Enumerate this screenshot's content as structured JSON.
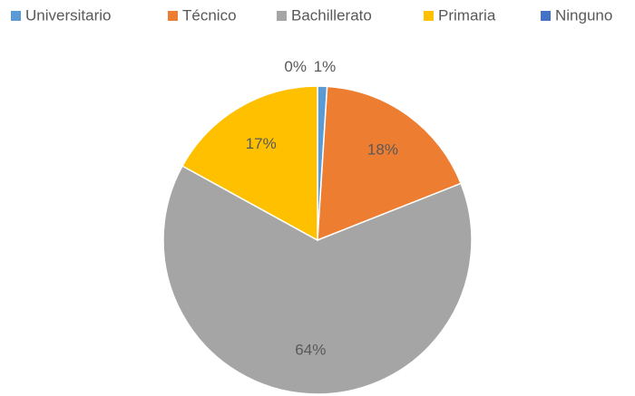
{
  "chart_data": {
    "type": "pie",
    "categories": [
      "Universitario",
      "Técnico",
      "Bachillerato",
      "Primaria",
      "Ninguno"
    ],
    "values": [
      1,
      18,
      64,
      17,
      0
    ],
    "value_labels": [
      "1%",
      "18%",
      "64%",
      "17%",
      "0%"
    ],
    "colors": [
      "#5b9bd5",
      "#ed7d31",
      "#a5a5a5",
      "#ffc000",
      "#4472c4"
    ],
    "legend": "top"
  }
}
